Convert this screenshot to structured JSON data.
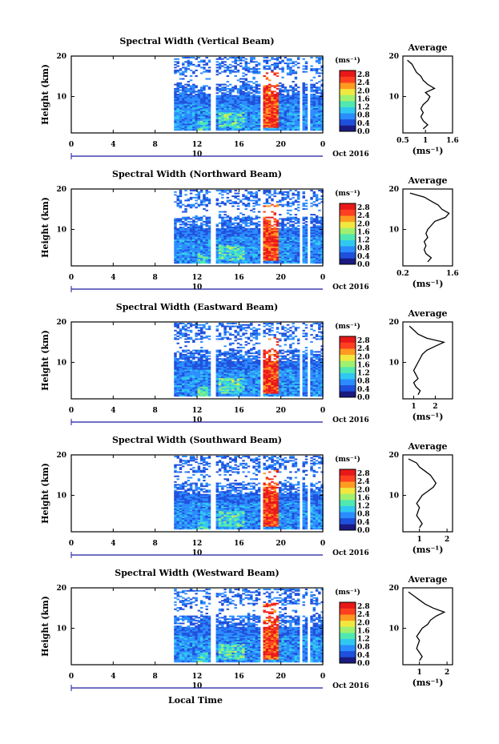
{
  "chart_data": {
    "type": "heatmap",
    "xlabel": "Local Time",
    "date_label": "Oct 2016",
    "date_day": "10",
    "x_ticks": [
      "0",
      "4",
      "8",
      "12",
      "16",
      "20",
      "0"
    ],
    "ylabel": "Height (km)",
    "y_ticks": [
      "20",
      "10"
    ],
    "xlim_hours": [
      0,
      24
    ],
    "ylim_km": [
      1,
      20
    ],
    "unit_label": "(ms⁻¹)",
    "colorbar_ticks": [
      "2.8",
      "2.4",
      "2.0",
      "1.6",
      "1.2",
      "0.8",
      "0.4",
      "0.0"
    ],
    "colorbar_colors": [
      "#1a1a80",
      "#1e50dc",
      "#2a8cff",
      "#30c8f0",
      "#50e8b0",
      "#a0f070",
      "#f0e840",
      "#ff9a20",
      "#ff4020",
      "#e81818"
    ],
    "average_title": "Average",
    "average_unit": "(ms⁻¹)",
    "panels": [
      {
        "title": "Spectral Width (Vertical Beam)",
        "data_hours": [
          9.8,
          24
        ],
        "avg_xlim": [
          0.5,
          1.6
        ],
        "avg_xticks": [
          "0.5",
          "1",
          "1.6"
        ],
        "avg_tick_vals": [
          0.5,
          1.0,
          1.6
        ],
        "avg_profile": [
          [
            0.95,
            2
          ],
          [
            1.05,
            3
          ],
          [
            0.95,
            4
          ],
          [
            0.9,
            5
          ],
          [
            0.95,
            6
          ],
          [
            0.9,
            7
          ],
          [
            0.95,
            8
          ],
          [
            1.05,
            9
          ],
          [
            1.1,
            10
          ],
          [
            1.0,
            11
          ],
          [
            1.2,
            12
          ],
          [
            1.05,
            13
          ],
          [
            0.95,
            14
          ],
          [
            0.9,
            15
          ],
          [
            0.8,
            16
          ],
          [
            0.75,
            17
          ],
          [
            0.7,
            18
          ],
          [
            0.6,
            19
          ]
        ]
      },
      {
        "title": "Spectral Width (Northward Beam)",
        "data_hours": [
          9.8,
          24
        ],
        "avg_xlim": [
          0.2,
          1.6
        ],
        "avg_xticks": [
          "0.2",
          "1.6"
        ],
        "avg_tick_vals": [
          0.2,
          1.6
        ],
        "avg_profile": [
          [
            0.9,
            2
          ],
          [
            1.0,
            3
          ],
          [
            0.85,
            4
          ],
          [
            0.8,
            5
          ],
          [
            0.85,
            6
          ],
          [
            0.8,
            7
          ],
          [
            0.9,
            8
          ],
          [
            0.85,
            9
          ],
          [
            0.9,
            10
          ],
          [
            1.0,
            11
          ],
          [
            1.1,
            12
          ],
          [
            1.4,
            13
          ],
          [
            1.5,
            14
          ],
          [
            1.3,
            15
          ],
          [
            1.2,
            16
          ],
          [
            1.0,
            17
          ],
          [
            0.8,
            18
          ],
          [
            0.4,
            19
          ]
        ]
      },
      {
        "title": "Spectral Width (Eastward Beam)",
        "data_hours": [
          9.8,
          24
        ],
        "avg_xlim": [
          0.5,
          2.8
        ],
        "avg_xticks": [
          "1",
          "2"
        ],
        "avg_tick_vals": [
          1.0,
          2.0
        ],
        "avg_profile": [
          [
            1.2,
            2
          ],
          [
            1.3,
            3
          ],
          [
            1.1,
            4
          ],
          [
            1.0,
            5
          ],
          [
            1.2,
            6
          ],
          [
            1.1,
            7
          ],
          [
            1.0,
            8
          ],
          [
            1.1,
            9
          ],
          [
            1.2,
            10
          ],
          [
            1.3,
            11
          ],
          [
            1.4,
            12
          ],
          [
            1.6,
            13
          ],
          [
            2.0,
            14
          ],
          [
            2.4,
            15
          ],
          [
            1.6,
            16
          ],
          [
            1.2,
            17
          ],
          [
            1.0,
            18
          ],
          [
            0.8,
            19
          ]
        ]
      },
      {
        "title": "Spectral Width (Southward Beam)",
        "data_hours": [
          9.8,
          24
        ],
        "avg_xlim": [
          0.4,
          2.2
        ],
        "avg_xticks": [
          "1",
          "2"
        ],
        "avg_tick_vals": [
          1.0,
          2.0
        ],
        "avg_profile": [
          [
            1.0,
            2
          ],
          [
            1.1,
            3
          ],
          [
            1.0,
            4
          ],
          [
            0.9,
            5
          ],
          [
            0.95,
            6
          ],
          [
            1.0,
            7
          ],
          [
            0.9,
            8
          ],
          [
            1.0,
            9
          ],
          [
            1.1,
            10
          ],
          [
            1.3,
            11
          ],
          [
            1.5,
            12
          ],
          [
            1.6,
            13
          ],
          [
            1.5,
            14
          ],
          [
            1.4,
            15
          ],
          [
            1.2,
            16
          ],
          [
            1.0,
            17
          ],
          [
            0.9,
            18
          ],
          [
            0.6,
            19
          ]
        ]
      },
      {
        "title": "Spectral Width (Westward Beam)",
        "data_hours": [
          9.8,
          24
        ],
        "avg_xlim": [
          0.4,
          2.2
        ],
        "avg_xticks": [
          "1",
          "2"
        ],
        "avg_tick_vals": [
          1.0,
          2.0
        ],
        "avg_profile": [
          [
            1.0,
            2
          ],
          [
            1.1,
            3
          ],
          [
            1.0,
            4
          ],
          [
            0.9,
            5
          ],
          [
            0.95,
            6
          ],
          [
            1.0,
            7
          ],
          [
            0.9,
            8
          ],
          [
            1.0,
            9
          ],
          [
            1.1,
            10
          ],
          [
            1.3,
            11
          ],
          [
            1.4,
            12
          ],
          [
            1.6,
            13
          ],
          [
            1.9,
            14
          ],
          [
            1.5,
            15
          ],
          [
            1.2,
            16
          ],
          [
            1.0,
            17
          ],
          [
            0.8,
            18
          ],
          [
            0.6,
            19
          ]
        ]
      }
    ]
  }
}
